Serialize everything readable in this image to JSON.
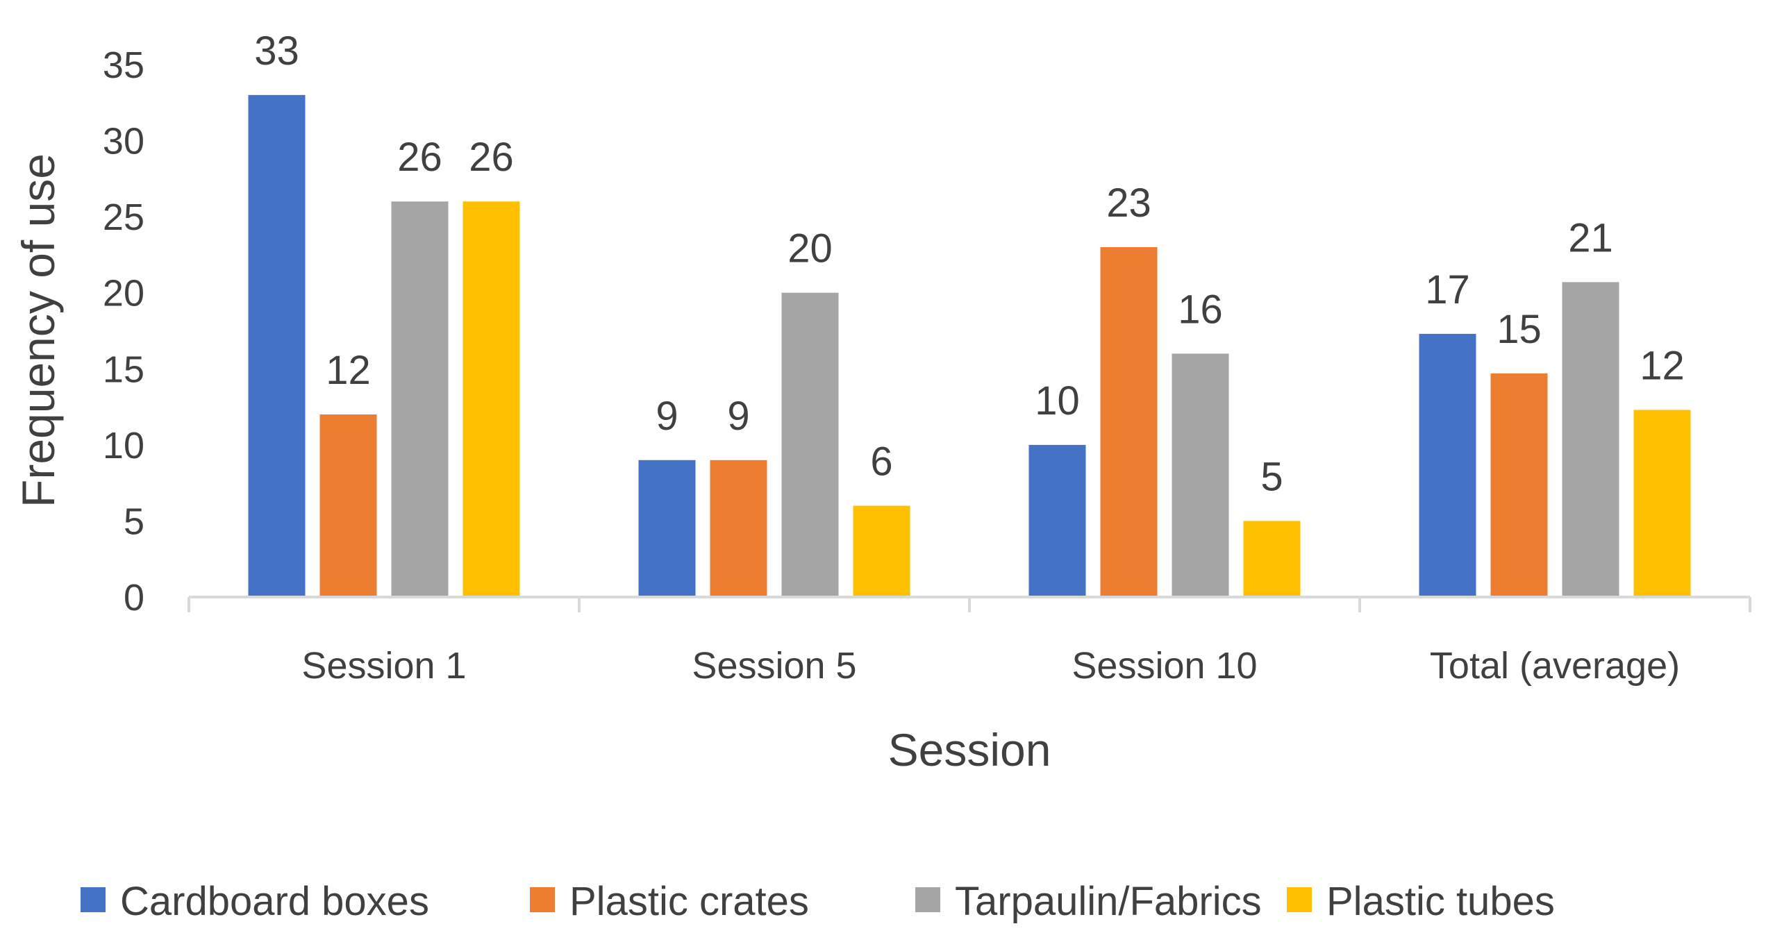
{
  "chart_data": {
    "type": "bar",
    "title": "",
    "xlabel": "Session",
    "ylabel": "Frequency of use",
    "categories": [
      "Session 1",
      "Session 5",
      "Session 10",
      "Total (average)"
    ],
    "ylim": [
      0,
      35
    ],
    "yticks": [
      0,
      5,
      10,
      15,
      20,
      25,
      30,
      35
    ],
    "grid": false,
    "legend_position": "bottom",
    "series": [
      {
        "name": "Cardboard boxes",
        "color": "#4472C4",
        "values": [
          33,
          9,
          10,
          17.3
        ],
        "labels": [
          "33",
          "9",
          "10",
          "17"
        ]
      },
      {
        "name": "Plastic crates",
        "color": "#ED7D31",
        "values": [
          12,
          9,
          23,
          14.7
        ],
        "labels": [
          "12",
          "9",
          "23",
          "15"
        ]
      },
      {
        "name": "Tarpaulin/Fabrics",
        "color": "#A5A5A5",
        "values": [
          26,
          20,
          16,
          20.7
        ],
        "labels": [
          "26",
          "20",
          "16",
          "21"
        ]
      },
      {
        "name": "Plastic tubes",
        "color": "#FFC000",
        "values": [
          26,
          6,
          5,
          12.3
        ],
        "labels": [
          "26",
          "6",
          "5",
          "12"
        ]
      }
    ]
  }
}
